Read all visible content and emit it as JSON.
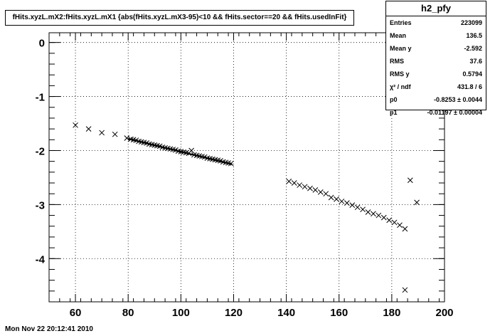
{
  "title": "fHits.xyzL.mX2:fHits.xyzL.mX1 {abs(fHits.xyzL.mX3-95)<10 && fHits.sector==20 && fHits.usedInFit}",
  "stats": {
    "name": "h2_pfy",
    "rows": [
      {
        "label": "Entries",
        "value": "223099"
      },
      {
        "label": "Mean",
        "value": "136.5"
      },
      {
        "label": "Mean y",
        "value": "-2.592"
      },
      {
        "label": "RMS",
        "value": "37.6"
      },
      {
        "label": "RMS y",
        "value": "0.5794"
      },
      {
        "label": "χ² / ndf",
        "value": "431.8 / 6"
      },
      {
        "label": "p0",
        "value": "-0.8253 ± 0.0044"
      },
      {
        "label": "p1",
        "value": "-0.01197 ± 0.00004"
      }
    ]
  },
  "timestamp": "Mon Nov 22 20:12:41 2010",
  "chart_data": {
    "type": "scatter",
    "xlim": [
      50,
      200
    ],
    "ylim": [
      -4.8,
      0.18
    ],
    "x_ticks": [
      60,
      80,
      100,
      120,
      140,
      160,
      180,
      200
    ],
    "y_ticks": [
      0,
      -1,
      -2,
      -3,
      -4
    ],
    "grid": true,
    "marker": "x",
    "points": [
      [
        60,
        -1.53
      ],
      [
        65,
        -1.6
      ],
      [
        70,
        -1.67
      ],
      [
        75,
        -1.7
      ],
      [
        79.5,
        -1.77
      ],
      [
        81,
        -1.79
      ],
      [
        82,
        -1.8
      ],
      [
        83,
        -1.81
      ],
      [
        84,
        -1.83
      ],
      [
        85,
        -1.84
      ],
      [
        86,
        -1.85
      ],
      [
        87,
        -1.86
      ],
      [
        88,
        -1.88
      ],
      [
        89,
        -1.89
      ],
      [
        90,
        -1.9
      ],
      [
        91,
        -1.91
      ],
      [
        92,
        -1.92
      ],
      [
        93,
        -1.94
      ],
      [
        94,
        -1.95
      ],
      [
        95,
        -1.96
      ],
      [
        96,
        -1.97
      ],
      [
        97,
        -1.98
      ],
      [
        98,
        -1.99
      ],
      [
        99,
        -2.01
      ],
      [
        100,
        -2.02
      ],
      [
        101,
        -2.03
      ],
      [
        102,
        -2.04
      ],
      [
        103,
        -2.05
      ],
      [
        104,
        -2.0
      ],
      [
        105,
        -2.08
      ],
      [
        106,
        -2.09
      ],
      [
        107,
        -2.1
      ],
      [
        108,
        -2.11
      ],
      [
        109,
        -2.12
      ],
      [
        110,
        -2.14
      ],
      [
        111,
        -2.15
      ],
      [
        112,
        -2.16
      ],
      [
        113,
        -2.17
      ],
      [
        114,
        -2.18
      ],
      [
        115,
        -2.19
      ],
      [
        116,
        -2.21
      ],
      [
        117,
        -2.22
      ],
      [
        118,
        -2.23
      ],
      [
        119,
        -2.24
      ],
      [
        141,
        -2.57
      ],
      [
        143,
        -2.6
      ],
      [
        145,
        -2.64
      ],
      [
        147,
        -2.67
      ],
      [
        149,
        -2.7
      ],
      [
        151,
        -2.73
      ],
      [
        153,
        -2.77
      ],
      [
        155,
        -2.8
      ],
      [
        157,
        -2.87
      ],
      [
        159,
        -2.9
      ],
      [
        161,
        -2.94
      ],
      [
        163,
        -2.97
      ],
      [
        165,
        -3.01
      ],
      [
        167,
        -3.05
      ],
      [
        169,
        -3.09
      ],
      [
        171,
        -3.14
      ],
      [
        173,
        -3.17
      ],
      [
        175,
        -3.2
      ],
      [
        177,
        -3.24
      ],
      [
        179,
        -3.29
      ],
      [
        181,
        -3.33
      ],
      [
        183,
        -3.38
      ],
      [
        185,
        -3.45
      ],
      [
        185,
        -4.58
      ],
      [
        187,
        -2.55
      ],
      [
        189.5,
        -2.96
      ]
    ],
    "fit_line": {
      "x": [
        80,
        119.5
      ],
      "p0": -0.8253,
      "p1": -0.01197
    }
  }
}
